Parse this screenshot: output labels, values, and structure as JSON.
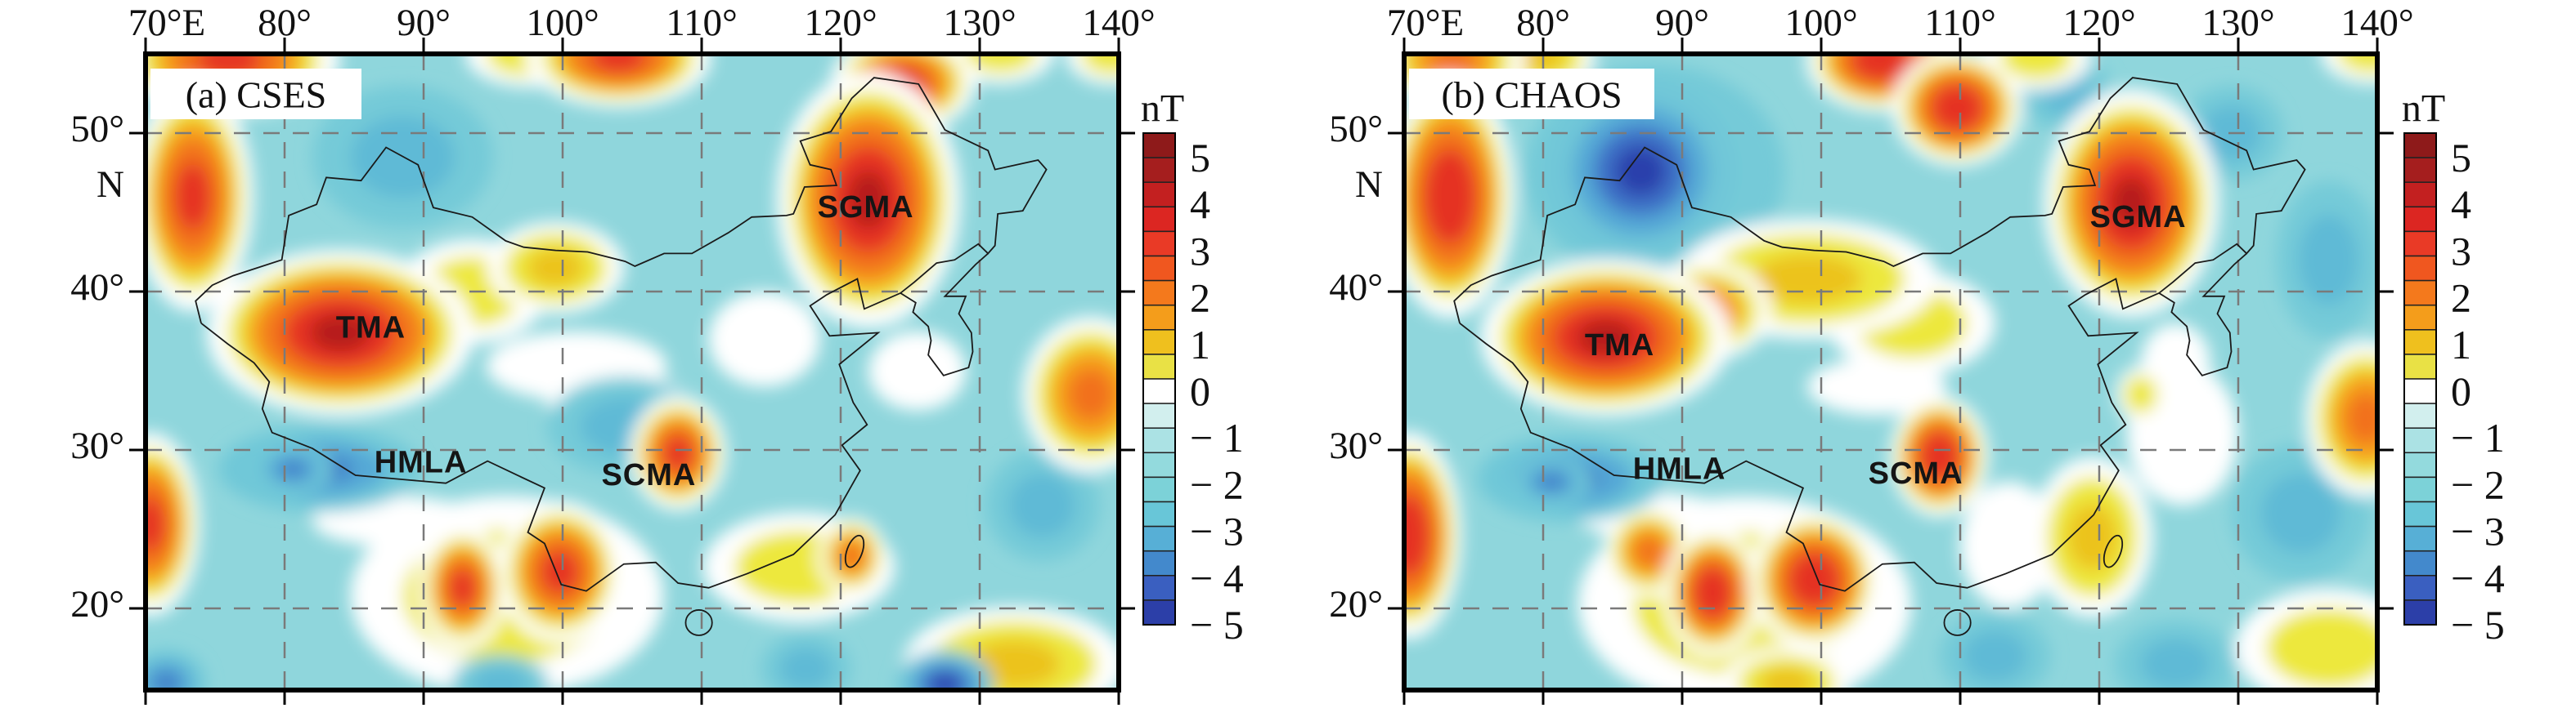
{
  "figure": {
    "colorbar": {
      "title": "nT",
      "tick_labels": [
        "5",
        "4",
        "3",
        "2",
        "1",
        "0",
        "− 1",
        "− 2",
        "− 3",
        "− 4",
        "− 5"
      ],
      "cell_colors": [
        "#8E1A1A",
        "#A51E1E",
        "#C32020",
        "#DC2622",
        "#E93A26",
        "#F0571F",
        "#F4791C",
        "#F49D1B",
        "#EFC01E",
        "#E9E145",
        "#FFFFFF",
        "#D2EFEE",
        "#ABE2E4",
        "#93DADD",
        "#7CD2D8",
        "#68C6D8",
        "#57AFD6",
        "#4389CC",
        "#3A5FC0",
        "#2C3FA8"
      ]
    },
    "axes": {
      "top_labels": [
        {
          "text": "70°E",
          "lon": 70
        },
        {
          "text": "80°",
          "lon": 80
        },
        {
          "text": "90°",
          "lon": 90
        },
        {
          "text": "100°",
          "lon": 100
        },
        {
          "text": "110°",
          "lon": 110
        },
        {
          "text": "120°",
          "lon": 120
        },
        {
          "text": "130°",
          "lon": 130
        },
        {
          "text": "140°",
          "lon": 140
        }
      ],
      "left_labels": [
        {
          "text": "50°",
          "lat": 50
        },
        {
          "text": "N",
          "lat": 46.5
        },
        {
          "text": "40°",
          "lat": 40
        },
        {
          "text": "30°",
          "lat": 30
        },
        {
          "text": "20°",
          "lat": 20
        }
      ],
      "lon_gridlines": [
        80,
        90,
        100,
        110,
        120,
        130
      ],
      "lat_gridlines": [
        50,
        40,
        30,
        20
      ],
      "lon_ticks": [
        70,
        80,
        90,
        100,
        110,
        120,
        130,
        140
      ],
      "lat_ticks": [
        50,
        40,
        30,
        20
      ]
    },
    "colors": {
      "background": "#FFFFFF",
      "map_base": "#8FD6DC",
      "frame": "#000000",
      "grid": "#7A7A7A",
      "coast": "#1A1A1A",
      "label": "#111111"
    },
    "stacks": {
      "wh": [
        [
          "#FFFFFF",
          1.0
        ]
      ],
      "w1": [
        [
          "#FFFFFF",
          1.5
        ],
        [
          "#EDE83E",
          1.0
        ]
      ],
      "w12": [
        [
          "#FFFFFF",
          1.45
        ],
        [
          "#EDE83E",
          1.08
        ],
        [
          "#ECC31F",
          0.6
        ]
      ],
      "w2": [
        [
          "#FFFFFF",
          1.45
        ],
        [
          "#EDE83E",
          1.16
        ],
        [
          "#F5A01F",
          0.85
        ],
        [
          "#F2711C",
          0.48
        ]
      ],
      "w3": [
        [
          "#FFFFFF",
          1.45
        ],
        [
          "#EDE83E",
          1.18
        ],
        [
          "#F5A01F",
          0.96
        ],
        [
          "#F2711C",
          0.72
        ],
        [
          "#E53123",
          0.42
        ]
      ],
      "w35": [
        [
          "#FFFFFF",
          1.42
        ],
        [
          "#EDE83E",
          1.18
        ],
        [
          "#F5A01F",
          1.0
        ],
        [
          "#F2711C",
          0.8
        ],
        [
          "#E53123",
          0.55
        ]
      ],
      "w4": [
        [
          "#FFFFFF",
          1.5
        ],
        [
          "#EDE83E",
          1.26
        ],
        [
          "#F5A01F",
          1.06
        ],
        [
          "#F2711C",
          0.87
        ],
        [
          "#E53123",
          0.62
        ],
        [
          "#B51E1E",
          0.33
        ]
      ],
      "c1": [
        [
          "#74CAD8",
          1.25
        ],
        [
          "#5FBAD6",
          0.72
        ]
      ],
      "c2": [
        [
          "#70C8D8",
          1.3
        ],
        [
          "#54A8D6",
          0.85
        ],
        [
          "#3F7CC8",
          0.42
        ]
      ],
      "c3": [
        [
          "#6FC6D8",
          1.45
        ],
        [
          "#54A8D6",
          1.05
        ],
        [
          "#3E6FC6",
          0.72
        ],
        [
          "#2C40AC",
          0.4
        ]
      ]
    },
    "outline": {
      "china": [
        [
          74,
          38
        ],
        [
          73.6,
          39.4
        ],
        [
          74.8,
          40.4
        ],
        [
          76.3,
          41
        ],
        [
          79.8,
          42
        ],
        [
          80.3,
          44.8
        ],
        [
          82.3,
          45.5
        ],
        [
          83,
          47.2
        ],
        [
          85.5,
          47
        ],
        [
          87.3,
          49.1
        ],
        [
          89.6,
          48
        ],
        [
          90.7,
          45.3
        ],
        [
          93.5,
          44.7
        ],
        [
          95.9,
          43.2
        ],
        [
          97.2,
          42.8
        ],
        [
          99.5,
          42.6
        ],
        [
          101.8,
          42.5
        ],
        [
          104.5,
          41.9
        ],
        [
          105.2,
          41.6
        ],
        [
          107.3,
          42.4
        ],
        [
          109.3,
          42.4
        ],
        [
          111.9,
          43.7
        ],
        [
          113.6,
          44.7
        ],
        [
          116.1,
          44.8
        ],
        [
          116.6,
          44.9
        ],
        [
          117.4,
          46.6
        ],
        [
          119.7,
          46.7
        ],
        [
          119.3,
          47.7
        ],
        [
          117.8,
          48
        ],
        [
          117.1,
          49.5
        ],
        [
          119.3,
          50.1
        ],
        [
          120.8,
          52.2
        ],
        [
          122.4,
          53.5
        ],
        [
          125.6,
          53.1
        ],
        [
          127.5,
          50.2
        ],
        [
          130.6,
          48.9
        ],
        [
          131.1,
          47.7
        ],
        [
          134.2,
          48.3
        ],
        [
          134.8,
          47.7
        ],
        [
          133.1,
          45.1
        ],
        [
          131.3,
          44.9
        ],
        [
          131.1,
          42.9
        ],
        [
          130.6,
          42.4
        ],
        [
          129.9,
          43
        ],
        [
          128.2,
          42
        ],
        [
          126.9,
          41.8
        ],
        [
          125.3,
          40.6
        ],
        [
          124.3,
          39.9
        ],
        [
          121.7,
          38.9
        ],
        [
          121.2,
          40.8
        ],
        [
          119,
          39.8
        ],
        [
          117.8,
          39.1
        ],
        [
          119.2,
          37.2
        ],
        [
          122.7,
          37.4
        ],
        [
          119.9,
          35.4
        ],
        [
          120.9,
          33
        ],
        [
          121.9,
          31.6
        ],
        [
          120.1,
          30.3
        ],
        [
          121.4,
          28.7
        ],
        [
          119.6,
          25.9
        ],
        [
          116.6,
          23.4
        ],
        [
          113.3,
          22.2
        ],
        [
          110.5,
          21.3
        ],
        [
          108.3,
          21.6
        ],
        [
          106.7,
          22.9
        ],
        [
          104.4,
          22.8
        ],
        [
          101.7,
          21.1
        ],
        [
          99.9,
          21.5
        ],
        [
          98.7,
          24.1
        ],
        [
          97.5,
          24.8
        ],
        [
          98.7,
          27.6
        ],
        [
          97,
          28.3
        ],
        [
          94.6,
          29.3
        ],
        [
          91.6,
          27.9
        ],
        [
          89,
          28.1
        ],
        [
          85.1,
          28.4
        ],
        [
          82,
          30.1
        ],
        [
          79.1,
          31.1
        ],
        [
          78.4,
          32.6
        ],
        [
          78.9,
          34.3
        ],
        [
          77.8,
          35.5
        ],
        [
          75.9,
          36.7
        ],
        [
          74,
          38
        ]
      ],
      "korea": [
        [
          124.3,
          39.9
        ],
        [
          125.4,
          39.3
        ],
        [
          125.2,
          38.7
        ],
        [
          126.3,
          37.8
        ],
        [
          126.5,
          36.9
        ],
        [
          126.3,
          36
        ],
        [
          127.4,
          34.7
        ],
        [
          129.2,
          35.2
        ],
        [
          129.5,
          36.2
        ],
        [
          129.4,
          37.4
        ],
        [
          128.5,
          38.6
        ],
        [
          129,
          39.7
        ],
        [
          127.5,
          39.7
        ],
        [
          129.7,
          41.7
        ],
        [
          130.6,
          42.4
        ]
      ],
      "taiwan": {
        "lon": 121.0,
        "lat": 23.6,
        "rx": 0.55,
        "ry": 1.05,
        "rot": 20
      },
      "hainan": {
        "lon": 109.8,
        "lat": 19.1,
        "rx": 0.95,
        "ry": 0.8,
        "rot": 0
      }
    },
    "panels": [
      {
        "tag": "(a) CSES",
        "anomaly_labels": [
          {
            "text": "TMA",
            "lon": 86.2,
            "lat": 37.7
          },
          {
            "text": "SGMA",
            "lon": 121.8,
            "lat": 45.3
          },
          {
            "text": "HMLA",
            "lon": 89.8,
            "lat": 29.2
          },
          {
            "text": "SCMA",
            "lon": 106.2,
            "lat": 28.4
          }
        ],
        "blobs": [
          [
            101,
            35.3,
            6.5,
            2.2,
            "wh"
          ],
          [
            103.8,
            33.2,
            5,
            1.8,
            "wh"
          ],
          [
            88,
            25.5,
            6,
            1.6,
            "wh"
          ],
          [
            114.5,
            37,
            4,
            3,
            "wh"
          ],
          [
            125.5,
            35,
            3.5,
            2.5,
            "wh"
          ],
          [
            88.5,
            48.5,
            5.2,
            3.6,
            "c1"
          ],
          [
            104.5,
            31.5,
            4.5,
            2.5,
            "c1"
          ],
          [
            134.5,
            26.5,
            3.3,
            2.8,
            "c1"
          ],
          [
            96,
            20.8,
            7.5,
            4.2,
            "w1"
          ],
          [
            117,
            22.6,
            4.6,
            2.3,
            "w1"
          ],
          [
            93.5,
            40,
            3.6,
            2.2,
            "w1"
          ],
          [
            97.5,
            55,
            3,
            1.4,
            "w1"
          ],
          [
            131.5,
            55.2,
            2.6,
            1.4,
            "w1"
          ],
          [
            139.5,
            55,
            2.2,
            1.3,
            "w1"
          ],
          [
            99.5,
            41.5,
            3.4,
            2.0,
            "w12"
          ],
          [
            132.5,
            16.5,
            5.5,
            2.5,
            "w12"
          ],
          [
            76,
            54.6,
            5.5,
            2.4,
            "w3"
          ],
          [
            73.4,
            46.0,
            3.0,
            5.0,
            "w3"
          ],
          [
            104,
            54.8,
            4.6,
            2.2,
            "w3"
          ],
          [
            124.5,
            53.2,
            3.6,
            2.2,
            "w3"
          ],
          [
            122,
            45.8,
            4.4,
            5.4,
            "w4"
          ],
          [
            84,
            37.4,
            6.4,
            3.5,
            "w4"
          ],
          [
            108.3,
            29.8,
            2.4,
            2.5,
            "w3"
          ],
          [
            70.3,
            25.3,
            2.5,
            4.0,
            "w3"
          ],
          [
            92.8,
            21.3,
            2.2,
            2.7,
            "w3"
          ],
          [
            99.8,
            22.3,
            3.1,
            3.1,
            "w3"
          ],
          [
            120.8,
            23.3,
            1.7,
            1.7,
            "w2"
          ],
          [
            138,
            33.5,
            3.4,
            3.4,
            "w2"
          ],
          [
            82.5,
            28.8,
            5.6,
            2.1,
            "c2"
          ],
          [
            80.6,
            28.8,
            2.2,
            1.2,
            "c2"
          ],
          [
            71.5,
            15.3,
            2.2,
            1.6,
            "c2"
          ],
          [
            95.5,
            15.2,
            2.8,
            1.5,
            "c1"
          ],
          [
            117.5,
            16.2,
            2.6,
            1.8,
            "c1"
          ],
          [
            127.5,
            15.2,
            2.4,
            1.5,
            "c3"
          ]
        ]
      },
      {
        "tag": "(b) CHAOS",
        "anomaly_labels": [
          {
            "text": "TMA",
            "lon": 85.5,
            "lat": 36.6
          },
          {
            "text": "SGMA",
            "lon": 122.8,
            "lat": 44.7
          },
          {
            "text": "HMLA",
            "lon": 89.8,
            "lat": 28.8
          },
          {
            "text": "SCMA",
            "lon": 106.8,
            "lat": 28.5
          }
        ],
        "blobs": [
          [
            104,
            34,
            5,
            1.8,
            "wh"
          ],
          [
            88,
            25.8,
            5.5,
            1.5,
            "wh"
          ],
          [
            126,
            31,
            4,
            4.5,
            "wh"
          ],
          [
            113.5,
            24,
            3.5,
            4,
            "wh"
          ],
          [
            125.5,
            35.5,
            2.5,
            2.5,
            "wh"
          ],
          [
            88,
            47.5,
            7.5,
            5.5,
            "c1"
          ],
          [
            136.5,
            42,
            3.0,
            4.0,
            "c1"
          ],
          [
            129.5,
            50,
            3.0,
            2.4,
            "c1"
          ],
          [
            117.6,
            52.6,
            2.6,
            2.0,
            "c1"
          ],
          [
            134.5,
            26,
            4,
            3.5,
            "c1"
          ],
          [
            125.5,
            16.5,
            3.5,
            2.2,
            "c1"
          ],
          [
            112.5,
            17,
            3.2,
            2.2,
            "c1"
          ],
          [
            94.5,
            20.3,
            8.0,
            4.5,
            "w1"
          ],
          [
            115.5,
            54.8,
            2.6,
            1.4,
            "w1"
          ],
          [
            139.5,
            55.2,
            2.4,
            1.4,
            "w1"
          ],
          [
            106.5,
            38.0,
            4.0,
            2.2,
            "w1"
          ],
          [
            123,
            33.5,
            1.2,
            1.2,
            "w1"
          ],
          [
            136.5,
            17.5,
            4.5,
            2.5,
            "w1"
          ],
          [
            99,
            40.8,
            6.5,
            2.6,
            "w12"
          ],
          [
            97.5,
            15.3,
            3.2,
            1.6,
            "w12"
          ],
          [
            80,
            54.8,
            2.6,
            1.6,
            "w12"
          ],
          [
            119.5,
            24.5,
            3.0,
            3.5,
            "w12"
          ],
          [
            73.5,
            54.6,
            3.6,
            2.0,
            "w2"
          ],
          [
            91.5,
            38.8,
            3.4,
            2.2,
            "w2"
          ],
          [
            87.6,
            23.6,
            2.2,
            2.0,
            "w2"
          ],
          [
            139.2,
            32,
            3.0,
            3.4,
            "w2"
          ],
          [
            73.3,
            46.0,
            3.3,
            5.4,
            "w35"
          ],
          [
            104.3,
            54.6,
            3.8,
            2.3,
            "w35"
          ],
          [
            109.8,
            51.6,
            3.3,
            2.6,
            "w35"
          ],
          [
            122.3,
            45.6,
            4.2,
            4.8,
            "w4"
          ],
          [
            84.5,
            37.1,
            6.0,
            3.3,
            "w4"
          ],
          [
            108.5,
            29.6,
            2.5,
            2.7,
            "w35"
          ],
          [
            70.3,
            24.6,
            2.7,
            4.6,
            "w35"
          ],
          [
            92.2,
            21.0,
            2.5,
            2.9,
            "w35"
          ],
          [
            99.5,
            21.8,
            3.3,
            3.1,
            "w35"
          ],
          [
            87,
            47.6,
            4.6,
            3.9,
            "c3"
          ],
          [
            82,
            28.2,
            5.2,
            2.1,
            "c2"
          ],
          [
            80.6,
            28,
            2.2,
            1.2,
            "c2"
          ]
        ]
      }
    ]
  }
}
